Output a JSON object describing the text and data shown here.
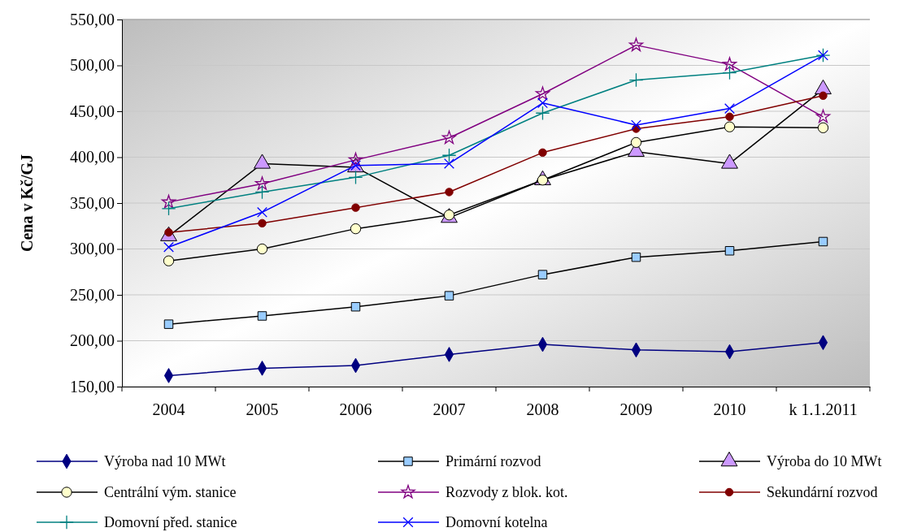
{
  "chart_data": {
    "type": "line",
    "ylabel": "Cena v Kč/GJ",
    "categories": [
      "2004",
      "2005",
      "2006",
      "2007",
      "2008",
      "2009",
      "2010",
      "k 1.1.2011"
    ],
    "ylim": [
      150,
      550
    ],
    "yticks": [
      {
        "value": 150,
        "label": "150,00"
      },
      {
        "value": 200,
        "label": "200,00"
      },
      {
        "value": 250,
        "label": "250,00"
      },
      {
        "value": 300,
        "label": "300,00"
      },
      {
        "value": 350,
        "label": "350,00"
      },
      {
        "value": 400,
        "label": "400,00"
      },
      {
        "value": 450,
        "label": "450,00"
      },
      {
        "value": 500,
        "label": "500,00"
      },
      {
        "value": 550,
        "label": "550,00"
      }
    ],
    "grid": "y",
    "legend": "bottom",
    "series": [
      {
        "name": "Výroba nad 10 MWt",
        "color": "#000080",
        "marker": "diamond",
        "values": [
          162,
          170,
          173,
          185,
          196,
          190,
          188,
          198
        ]
      },
      {
        "name": "Primární rozvod",
        "color": "#99ccff",
        "marker": "square",
        "values": [
          218,
          227,
          237,
          249,
          272,
          291,
          298,
          308
        ]
      },
      {
        "name": "Výroba do 10 MWt",
        "color": "#cc99ff",
        "marker": "triangle",
        "values": [
          314,
          393,
          389,
          334,
          375,
          406,
          393,
          474
        ]
      },
      {
        "name": "Centrální vým. stanice",
        "color": "#ffffcc",
        "marker": "circle",
        "values": [
          287,
          300,
          322,
          337,
          375,
          416,
          433,
          432
        ]
      },
      {
        "name": "Rozvody z blok. kot.",
        "color": "#800080",
        "marker": "star",
        "values": [
          351,
          371,
          397,
          421,
          469,
          522,
          501,
          444
        ]
      },
      {
        "name": "Sekundární rozvod",
        "color": "#800000",
        "marker": "circle",
        "values": [
          318,
          328,
          345,
          362,
          405,
          431,
          444,
          467
        ]
      },
      {
        "name": "Domovní před. stanice",
        "color": "#008080",
        "marker": "cross",
        "values": [
          344,
          362,
          378,
          402,
          448,
          484,
          492,
          511
        ]
      },
      {
        "name": "Domovní kotelna",
        "color": "#0000ff",
        "marker": "cross",
        "values": [
          302,
          340,
          391,
          393,
          459,
          435,
          453,
          511
        ]
      }
    ]
  }
}
